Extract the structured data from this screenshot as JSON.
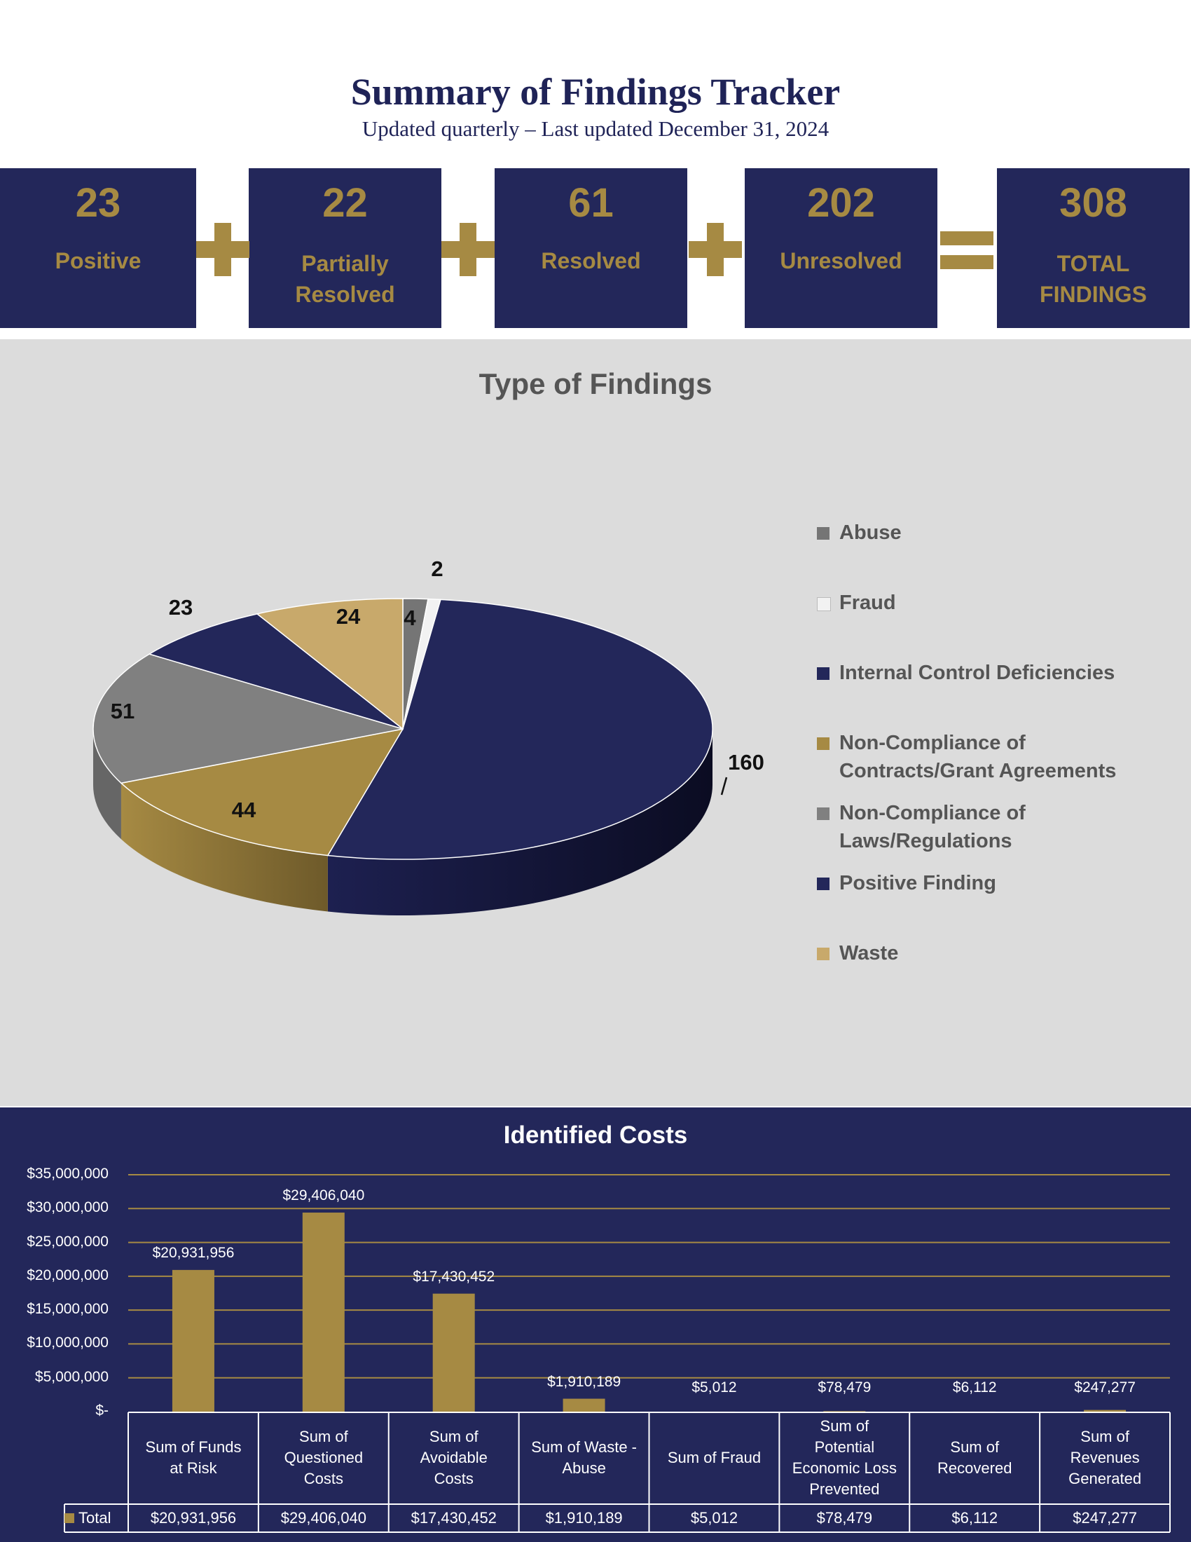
{
  "header": {
    "title": "Summary of Findings Tracker",
    "subtitle": "Updated quarterly – Last updated December 31, 2024"
  },
  "stats": [
    {
      "value": "23",
      "label_lines": [
        "Positive"
      ]
    },
    {
      "value": "22",
      "label_lines": [
        "Partially",
        "Resolved"
      ]
    },
    {
      "value": "61",
      "label_lines": [
        "Resolved"
      ]
    },
    {
      "value": "202",
      "label_lines": [
        "Unresolved"
      ]
    },
    {
      "value": "308",
      "label_lines": [
        "TOTAL",
        "FINDINGS"
      ]
    }
  ],
  "colors": {
    "navy": "#23275a",
    "gold": "#a68a43",
    "panel_gray": "#dcdcdc"
  },
  "chart_data": [
    {
      "type": "pie",
      "title": "Type of Findings",
      "legend_position": "right",
      "slices": [
        {
          "label_lines": [
            "Abuse"
          ],
          "value": 4,
          "color": "#757575"
        },
        {
          "label_lines": [
            "Fraud"
          ],
          "value": 2,
          "color": "#f2f2f2"
        },
        {
          "label_lines": [
            "Internal Control Deficiencies"
          ],
          "value": 160,
          "color": "#23275a"
        },
        {
          "label_lines": [
            "Non-Compliance of",
            "Contracts/Grant Agreements"
          ],
          "value": 44,
          "color": "#a68a43"
        },
        {
          "label_lines": [
            "Non-Compliance of",
            "Laws/Regulations"
          ],
          "value": 51,
          "color": "#808080"
        },
        {
          "label_lines": [
            "Positive Finding"
          ],
          "value": 23,
          "color": "#23275a"
        },
        {
          "label_lines": [
            "Waste"
          ],
          "value": 24,
          "color": "#c8a96b"
        }
      ]
    },
    {
      "type": "bar",
      "title": "Identified Costs",
      "ylim": [
        0,
        35000000
      ],
      "yticks": [
        {
          "value": 0,
          "label": "$-"
        },
        {
          "value": 5000000,
          "label": "$5,000,000"
        },
        {
          "value": 10000000,
          "label": "$10,000,000"
        },
        {
          "value": 15000000,
          "label": "$15,000,000"
        },
        {
          "value": 20000000,
          "label": "$20,000,000"
        },
        {
          "value": 25000000,
          "label": "$25,000,000"
        },
        {
          "value": 30000000,
          "label": "$30,000,000"
        },
        {
          "value": 35000000,
          "label": "$35,000,000"
        }
      ],
      "grid": true,
      "categories": [
        {
          "lines": [
            "Sum of Funds",
            "at Risk"
          ]
        },
        {
          "lines": [
            "Sum of",
            "Questioned",
            "Costs"
          ]
        },
        {
          "lines": [
            "Sum of",
            "Avoidable",
            "Costs"
          ]
        },
        {
          "lines": [
            "Sum of Waste -",
            "Abuse"
          ]
        },
        {
          "lines": [
            "Sum of Fraud"
          ]
        },
        {
          "lines": [
            "Sum of",
            "Potential",
            "Economic Loss",
            "Prevented"
          ]
        },
        {
          "lines": [
            "Sum of",
            "Recovered"
          ]
        },
        {
          "lines": [
            "Sum of",
            "Revenues",
            "Generated"
          ]
        }
      ],
      "series": [
        {
          "name": "Total",
          "values": [
            20931956,
            29406040,
            17430452,
            1910189,
            5012,
            78479,
            6112,
            247277
          ],
          "labels": [
            "$20,931,956",
            "$29,406,040",
            "$17,430,452",
            "$1,910,189",
            "$5,012",
            "$78,479",
            "$6,112",
            "$247,277"
          ],
          "color": "#a68a43"
        }
      ]
    }
  ]
}
